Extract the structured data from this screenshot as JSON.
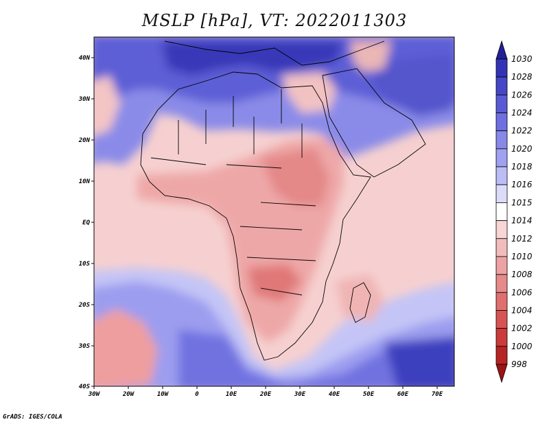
{
  "title": "MSLP [hPa], VT: 2022011303",
  "credit": "GrADS: IGES/COLA",
  "lon_ticks": [
    "30W",
    "20W",
    "10W",
    "0",
    "10E",
    "20E",
    "30E",
    "40E",
    "50E",
    "60E",
    "70E"
  ],
  "lat_ticks": [
    "40N",
    "30N",
    "20N",
    "10N",
    "EQ",
    "10S",
    "20S",
    "30S",
    "40S"
  ],
  "colorbar": {
    "levels": [
      "1030",
      "1028",
      "1026",
      "1024",
      "1022",
      "1020",
      "1018",
      "1016",
      "1015",
      "1014",
      "1012",
      "1010",
      "1008",
      "1006",
      "1004",
      "1002",
      "1000",
      "998"
    ],
    "colors": [
      "#22209a",
      "#3433b8",
      "#4646c8",
      "#5a5bd4",
      "#6e6fe0",
      "#8788e8",
      "#a0a1f0",
      "#bcbdf6",
      "#dcdcfa",
      "#ffffff",
      "#f8d6d6",
      "#f3bcbc",
      "#eda3a3",
      "#e78a8a",
      "#e06f6f",
      "#d85454",
      "#cc3a3a",
      "#b82424",
      "#9c1414"
    ]
  }
}
